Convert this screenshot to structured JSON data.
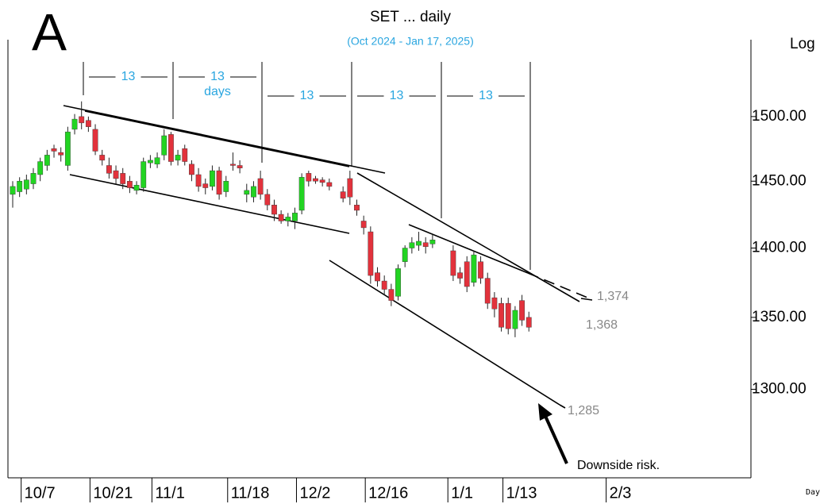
{
  "chart_data": {
    "type": "candlestick",
    "panel_label": "A",
    "title": "SET ... daily",
    "subtitle": "(Oct 2024 - Jan 17, 2025)",
    "scale_label": "Log",
    "x_label": "Day",
    "cycle_labels": [
      13,
      13,
      13,
      13,
      13
    ],
    "cycle_unit": "days",
    "annotations": [
      "1,374",
      "1,368",
      "1,285",
      "Downside risk."
    ],
    "log": true,
    "ylim": [
      1241,
      1565
    ],
    "yticks": [
      {
        "value": 1300,
        "label": "1300.00"
      },
      {
        "value": 1350,
        "label": "1350.00"
      },
      {
        "value": 1400,
        "label": "1400.00"
      },
      {
        "value": 1450,
        "label": "1450.00"
      },
      {
        "value": 1500,
        "label": "1500.00"
      }
    ],
    "up_color": "#22d422",
    "down_color": "#e2323c",
    "categories": [
      null,
      "10/7",
      null,
      null,
      null,
      null,
      null,
      null,
      null,
      null,
      null,
      "10/21",
      null,
      null,
      null,
      null,
      null,
      null,
      null,
      null,
      "11/1",
      null,
      null,
      null,
      null,
      null,
      null,
      null,
      null,
      null,
      null,
      "11/18",
      null,
      null,
      null,
      null,
      null,
      null,
      null,
      null,
      null,
      "12/2",
      null,
      null,
      null,
      null,
      null,
      null,
      null,
      null,
      null,
      "12/16",
      null,
      null,
      null,
      null,
      null,
      null,
      null,
      null,
      null,
      null,
      null,
      "1/1",
      null,
      null,
      null,
      null,
      null,
      null,
      null,
      "1/13",
      null,
      null,
      null,
      null,
      null,
      null,
      null,
      null,
      null,
      null,
      null,
      null,
      null,
      null,
      "2/3",
      null,
      null,
      null,
      null,
      null,
      null,
      null,
      null,
      null,
      null,
      null,
      null,
      null,
      null,
      null,
      null,
      null,
      null,
      null,
      null,
      null
    ],
    "open": [
      1440,
      1442,
      1444,
      1448,
      1455,
      1462,
      1475,
      1472,
      1462,
      1490,
      1500,
      1497,
      1490,
      1470,
      1462,
      1458,
      1456,
      1450,
      1443,
      1445,
      1464,
      1463,
      1470,
      1486,
      1466,
      1475,
      1463,
      1455,
      1448,
      1446,
      1458,
      1442,
      1463,
      1462,
      1440,
      1438,
      1452,
      1440,
      1432,
      1425,
      1420,
      1420,
      1428,
      1456,
      1452,
      1451,
      1449,
      null,
      1442,
      1452,
      1432,
      1420,
      1412,
      1382,
      1376,
      1370,
      1365,
      1390,
      1400,
      1402,
      1404,
      1403,
      null,
      null,
      1398,
      1382,
      1390,
      1375,
      1390,
      1378,
      1364,
      1360,
      1360,
      1342,
      1362,
      1350,
      null,
      null,
      null,
      null,
      null,
      null,
      null,
      null,
      null,
      null,
      null,
      null,
      null,
      null,
      null,
      null,
      null,
      null,
      null,
      null,
      null,
      null,
      null,
      null,
      null,
      null,
      null,
      null,
      null,
      null,
      null,
      null
    ],
    "high": [
      1450,
      1453,
      1455,
      1460,
      1468,
      1474,
      1478,
      1476,
      1492,
      1502,
      1512,
      1500,
      1494,
      1474,
      1468,
      1462,
      1460,
      1454,
      1450,
      1468,
      1470,
      1472,
      1490,
      1488,
      1474,
      1478,
      1466,
      1460,
      1452,
      1462,
      1461,
      1454,
      1472,
      1466,
      1448,
      1450,
      1458,
      1444,
      1436,
      1428,
      1426,
      1430,
      1456,
      1458,
      1454,
      1453,
      1452,
      null,
      1446,
      1458,
      1436,
      1424,
      1416,
      1386,
      1380,
      1374,
      1388,
      1402,
      1408,
      1412,
      1408,
      1410,
      null,
      null,
      1402,
      1386,
      1394,
      1398,
      1394,
      1382,
      1368,
      1364,
      1364,
      1358,
      1366,
      1354,
      null,
      null,
      null,
      null,
      null,
      null,
      null,
      null,
      null,
      null,
      null,
      null,
      null,
      null,
      null,
      null,
      null,
      null,
      null,
      null,
      null,
      null,
      null,
      null,
      null,
      null,
      null,
      null,
      null,
      null,
      null,
      null
    ],
    "low": [
      1430,
      1438,
      1440,
      1444,
      1450,
      1458,
      1468,
      1465,
      1458,
      1486,
      1490,
      1488,
      1470,
      1462,
      1452,
      1448,
      1444,
      1441,
      1440,
      1442,
      1460,
      1460,
      1466,
      1462,
      1462,
      1462,
      1450,
      1442,
      1440,
      1443,
      1436,
      1438,
      1458,
      1456,
      1434,
      1434,
      1436,
      1428,
      1420,
      1418,
      1416,
      1414,
      1425,
      1446,
      1448,
      1446,
      1443,
      null,
      1434,
      1432,
      1424,
      1410,
      1374,
      1372,
      1366,
      1358,
      1362,
      1386,
      1396,
      1398,
      1396,
      1400,
      null,
      null,
      1376,
      1374,
      1368,
      1372,
      1374,
      1356,
      1350,
      1340,
      1338,
      1336,
      1344,
      1340,
      null,
      null,
      null,
      null,
      null,
      null,
      null,
      null,
      null,
      null,
      null,
      null,
      null,
      null,
      null,
      null,
      null,
      null,
      null,
      null,
      null,
      null,
      null,
      null,
      null,
      null,
      null,
      null,
      null,
      null,
      null,
      null
    ],
    "close": [
      1446,
      1450,
      1451,
      1456,
      1465,
      1470,
      1473,
      1470,
      1488,
      1498,
      1495,
      1492,
      1473,
      1466,
      1456,
      1452,
      1448,
      1445,
      1447,
      1465,
      1466,
      1468,
      1485,
      1465,
      1470,
      1465,
      1455,
      1446,
      1445,
      1458,
      1440,
      1450,
      1462,
      1460,
      1443,
      1446,
      1440,
      1432,
      1425,
      1420,
      1423,
      1426,
      1453,
      1450,
      1450,
      1449,
      1446,
      null,
      1437,
      1438,
      1428,
      1415,
      1380,
      1376,
      1370,
      1362,
      1385,
      1400,
      1404,
      1405,
      1401,
      1406,
      null,
      null,
      1380,
      1378,
      1372,
      1395,
      1378,
      1360,
      1356,
      1343,
      1342,
      1355,
      1348,
      1343,
      null,
      null,
      null,
      null,
      null,
      null,
      null,
      null,
      null,
      null,
      null,
      null,
      null,
      null,
      null,
      null,
      null,
      null,
      null,
      null,
      null,
      null,
      null,
      null,
      null,
      null,
      null,
      null,
      null,
      null,
      null,
      null
    ]
  }
}
